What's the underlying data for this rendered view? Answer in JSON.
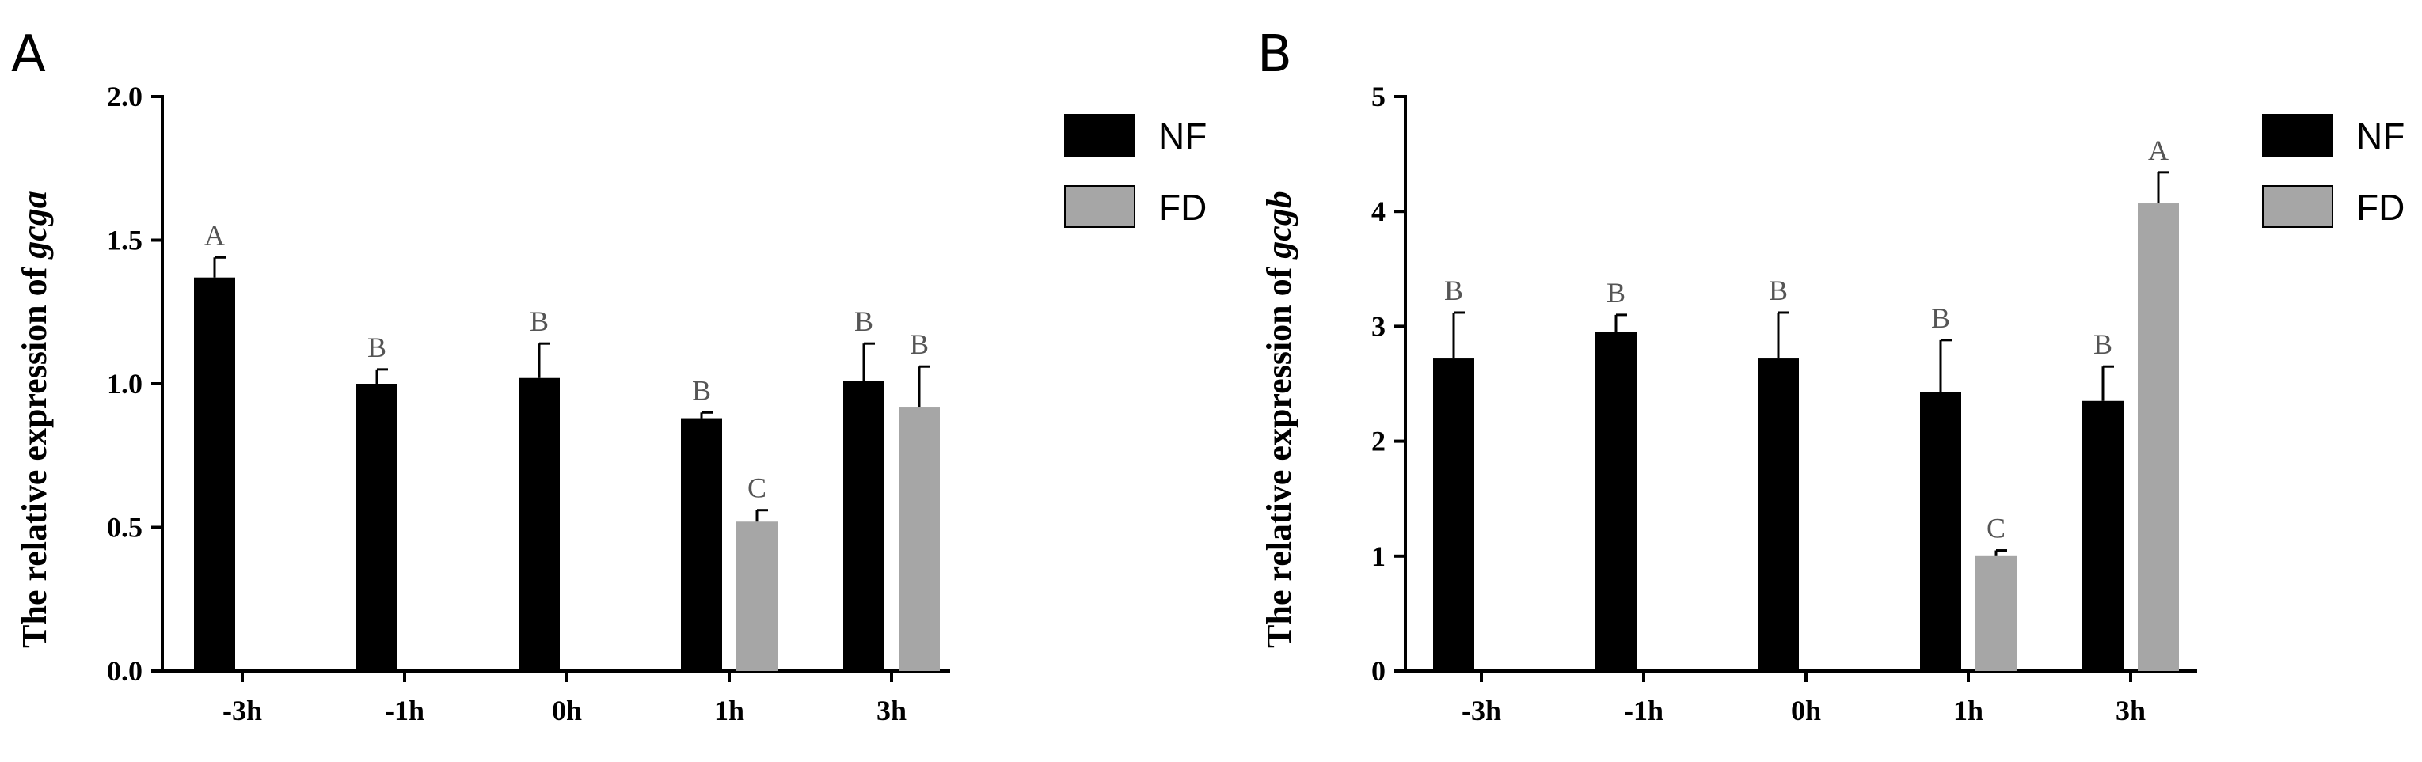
{
  "chart_data": [
    {
      "type": "bar",
      "panel": "A",
      "ylabel_prefix": "The relative expression of ",
      "ylabel_gene": "gcga",
      "categories": [
        "-3h",
        "-1h",
        "0h",
        "1h",
        "3h"
      ],
      "ylim": [
        0,
        2.0
      ],
      "yticks": [
        "0.0",
        "0.5",
        "1.0",
        "1.5",
        "2.0"
      ],
      "grid": false,
      "legend_position": "right",
      "series": [
        {
          "name": "NF",
          "color": "#000000",
          "values": [
            1.37,
            1.0,
            1.02,
            0.88,
            1.01
          ],
          "errors": [
            0.07,
            0.05,
            0.12,
            0.02,
            0.13
          ],
          "letters": [
            "A",
            "B",
            "B",
            "B",
            "B"
          ]
        },
        {
          "name": "FD",
          "color": "#a6a6a6",
          "values": [
            null,
            null,
            null,
            0.52,
            0.92
          ],
          "errors": [
            null,
            null,
            null,
            0.04,
            0.14
          ],
          "letters": [
            null,
            null,
            null,
            "C",
            "B"
          ]
        }
      ]
    },
    {
      "type": "bar",
      "panel": "B",
      "ylabel_prefix": "The relative expression of ",
      "ylabel_gene": "gcgb",
      "categories": [
        "-3h",
        "-1h",
        "0h",
        "1h",
        "3h"
      ],
      "ylim": [
        0,
        5
      ],
      "yticks": [
        "0",
        "1",
        "2",
        "3",
        "4",
        "5"
      ],
      "grid": false,
      "legend_position": "right",
      "series": [
        {
          "name": "NF",
          "color": "#000000",
          "values": [
            2.72,
            2.95,
            2.72,
            2.43,
            2.35
          ],
          "errors": [
            0.4,
            0.15,
            0.4,
            0.45,
            0.3
          ],
          "letters": [
            "B",
            "B",
            "B",
            "B",
            "B"
          ]
        },
        {
          "name": "FD",
          "color": "#a6a6a6",
          "values": [
            null,
            null,
            null,
            1.0,
            4.07
          ],
          "errors": [
            null,
            null,
            null,
            0.05,
            0.27
          ],
          "letters": [
            null,
            null,
            null,
            "C",
            "A"
          ]
        }
      ]
    }
  ]
}
